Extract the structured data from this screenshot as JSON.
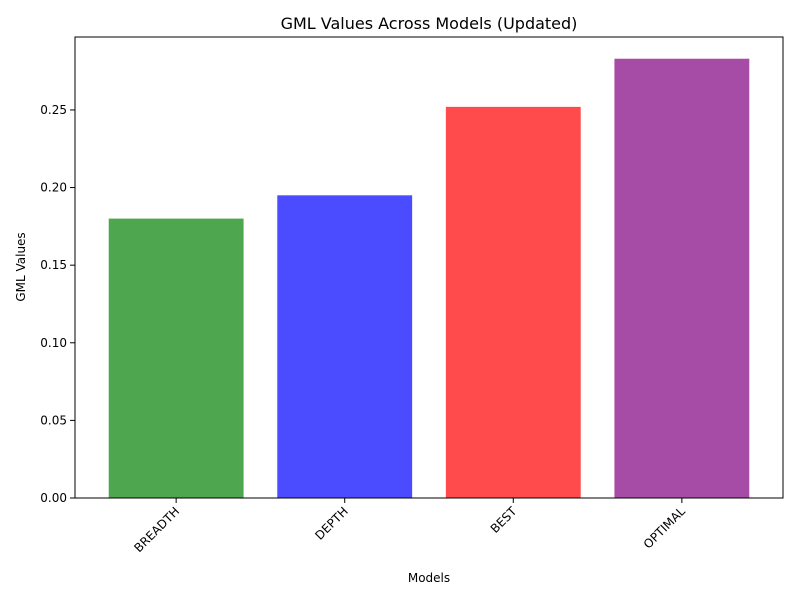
{
  "chart_data": {
    "type": "bar",
    "title": "GML Values Across Models (Updated)",
    "xlabel": "Models",
    "ylabel": "GML Values",
    "categories": [
      "BREADTH",
      "DEPTH",
      "BEST",
      "OPTIMAL"
    ],
    "values": [
      0.18,
      0.195,
      0.252,
      0.283
    ],
    "colors": [
      "#4ea64e",
      "#4b4bff",
      "#ff4b4b",
      "#a64ca6"
    ],
    "ylim": [
      0,
      0.297
    ],
    "yticks": [
      0.0,
      0.05,
      0.1,
      0.15,
      0.2,
      0.25
    ],
    "ytick_labels": [
      "0.00",
      "0.05",
      "0.10",
      "0.15",
      "0.20",
      "0.25"
    ],
    "grid": false,
    "legend": "none"
  }
}
